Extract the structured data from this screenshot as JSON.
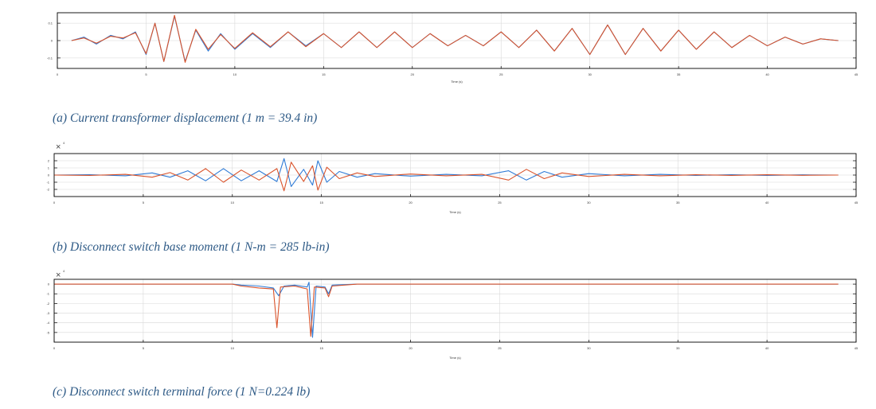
{
  "chart_data": [
    {
      "id": "a",
      "type": "line",
      "caption": "(a) Current transformer displacement (1 m = 39.4 in)",
      "xlabel": "Time (s)",
      "ylabel": "",
      "xlim": [
        0,
        45
      ],
      "ylim": [
        -0.16,
        0.16
      ],
      "x_ticks": [
        "0",
        "5",
        "10",
        "15",
        "20",
        "25",
        "30",
        "35",
        "40",
        "45"
      ],
      "y_ticks": [
        "0.1",
        "0",
        "-0.1"
      ],
      "exponent": "",
      "grid": true,
      "colors": [
        "#2f7bd6",
        "#d9532b"
      ],
      "series": [
        {
          "values": [
            [
              0.8,
              0
            ],
            [
              1.5,
              0.02
            ],
            [
              2.2,
              -0.02
            ],
            [
              3,
              0.03
            ],
            [
              3.7,
              0.01
            ],
            [
              4.4,
              0.05
            ],
            [
              5,
              -0.08
            ],
            [
              5.5,
              0.1
            ],
            [
              6,
              -0.12
            ],
            [
              6.6,
              0.14
            ],
            [
              7.2,
              -0.12
            ],
            [
              7.8,
              0.06
            ],
            [
              8.5,
              -0.06
            ],
            [
              9.2,
              0.04
            ],
            [
              10,
              -0.05
            ],
            [
              11,
              0.04
            ],
            [
              12,
              -0.04
            ],
            [
              13,
              0.05
            ],
            [
              14,
              -0.03
            ],
            [
              15,
              0.04
            ],
            [
              16,
              -0.04
            ],
            [
              17,
              0.05
            ],
            [
              18,
              -0.04
            ],
            [
              19,
              0.05
            ],
            [
              20,
              -0.04
            ],
            [
              21,
              0.04
            ],
            [
              22,
              -0.03
            ],
            [
              23,
              0.03
            ],
            [
              24,
              -0.03
            ],
            [
              25,
              0.05
            ],
            [
              26,
              -0.04
            ],
            [
              27,
              0.06
            ],
            [
              28,
              -0.06
            ],
            [
              29,
              0.07
            ],
            [
              30,
              -0.08
            ],
            [
              31,
              0.09
            ],
            [
              32,
              -0.08
            ],
            [
              33,
              0.07
            ],
            [
              34,
              -0.06
            ],
            [
              35,
              0.06
            ],
            [
              36,
              -0.05
            ],
            [
              37,
              0.05
            ],
            [
              38,
              -0.04
            ],
            [
              39,
              0.03
            ],
            [
              40,
              -0.03
            ],
            [
              41,
              0.02
            ],
            [
              42,
              -0.02
            ],
            [
              43,
              0.01
            ],
            [
              44,
              0
            ]
          ]
        },
        {
          "values": [
            [
              0.8,
              0
            ],
            [
              1.5,
              0.015
            ],
            [
              2.2,
              -0.015
            ],
            [
              3,
              0.025
            ],
            [
              3.7,
              0.015
            ],
            [
              4.4,
              0.045
            ],
            [
              5,
              -0.075
            ],
            [
              5.5,
              0.1
            ],
            [
              6,
              -0.12
            ],
            [
              6.6,
              0.145
            ],
            [
              7.2,
              -0.125
            ],
            [
              7.8,
              0.065
            ],
            [
              8.5,
              -0.05
            ],
            [
              9.2,
              0.035
            ],
            [
              10,
              -0.045
            ],
            [
              11,
              0.045
            ],
            [
              12,
              -0.035
            ],
            [
              13,
              0.05
            ],
            [
              14,
              -0.035
            ],
            [
              15,
              0.04
            ],
            [
              16,
              -0.04
            ],
            [
              17,
              0.05
            ],
            [
              18,
              -0.04
            ],
            [
              19,
              0.05
            ],
            [
              20,
              -0.04
            ],
            [
              21,
              0.04
            ],
            [
              22,
              -0.03
            ],
            [
              23,
              0.03
            ],
            [
              24,
              -0.03
            ],
            [
              25,
              0.05
            ],
            [
              26,
              -0.04
            ],
            [
              27,
              0.06
            ],
            [
              28,
              -0.06
            ],
            [
              29,
              0.07
            ],
            [
              30,
              -0.08
            ],
            [
              31,
              0.09
            ],
            [
              32,
              -0.08
            ],
            [
              33,
              0.07
            ],
            [
              34,
              -0.06
            ],
            [
              35,
              0.06
            ],
            [
              36,
              -0.05
            ],
            [
              37,
              0.05
            ],
            [
              38,
              -0.04
            ],
            [
              39,
              0.03
            ],
            [
              40,
              -0.03
            ],
            [
              41,
              0.02
            ],
            [
              42,
              -0.02
            ],
            [
              43,
              0.01
            ],
            [
              44,
              0
            ]
          ]
        }
      ]
    },
    {
      "id": "b",
      "type": "line",
      "caption": "(b) Disconnect switch base moment (1 N-m = 285 lb-in)",
      "xlabel": "Time (s)",
      "ylabel": "",
      "xlim": [
        0,
        45
      ],
      "ylim": [
        -3,
        3
      ],
      "x_ticks": [
        "0",
        "5",
        "10",
        "15",
        "20",
        "25",
        "30",
        "35",
        "40",
        "45"
      ],
      "y_ticks": [
        "2",
        "1",
        "0",
        "-1",
        "-2"
      ],
      "exponent": "4",
      "grid": true,
      "colors": [
        "#2f7bd6",
        "#d9532b"
      ],
      "series": [
        {
          "values": [
            [
              0,
              0
            ],
            [
              2,
              0.05
            ],
            [
              4,
              -0.1
            ],
            [
              5.5,
              0.3
            ],
            [
              6.5,
              -0.3
            ],
            [
              7.5,
              0.6
            ],
            [
              8.5,
              -0.8
            ],
            [
              9.5,
              0.9
            ],
            [
              10.5,
              -0.8
            ],
            [
              11.5,
              0.6
            ],
            [
              12.5,
              -0.9
            ],
            [
              12.9,
              2.3
            ],
            [
              13.3,
              -1.6
            ],
            [
              14,
              0.8
            ],
            [
              14.5,
              -1.4
            ],
            [
              14.8,
              2
            ],
            [
              15.3,
              -1
            ],
            [
              16,
              0.5
            ],
            [
              17,
              -0.3
            ],
            [
              18,
              0.2
            ],
            [
              20,
              -0.15
            ],
            [
              22,
              0.1
            ],
            [
              24,
              -0.1
            ],
            [
              25.5,
              0.6
            ],
            [
              26.5,
              -0.7
            ],
            [
              27.5,
              0.5
            ],
            [
              28.5,
              -0.3
            ],
            [
              30,
              0.2
            ],
            [
              32,
              -0.1
            ],
            [
              34,
              0.1
            ],
            [
              36,
              -0.05
            ],
            [
              38,
              0.05
            ],
            [
              40,
              -0.05
            ],
            [
              42,
              0.03
            ],
            [
              44,
              0
            ]
          ]
        },
        {
          "values": [
            [
              0,
              0
            ],
            [
              2,
              -0.05
            ],
            [
              4,
              0.1
            ],
            [
              5.5,
              -0.3
            ],
            [
              6.5,
              0.35
            ],
            [
              7.5,
              -0.7
            ],
            [
              8.5,
              0.9
            ],
            [
              9.5,
              -1
            ],
            [
              10.5,
              0.7
            ],
            [
              11.5,
              -0.7
            ],
            [
              12.5,
              0.9
            ],
            [
              12.9,
              -2.2
            ],
            [
              13.3,
              1.8
            ],
            [
              14,
              -0.9
            ],
            [
              14.5,
              1.3
            ],
            [
              14.8,
              -2.1
            ],
            [
              15.3,
              1.1
            ],
            [
              16,
              -0.5
            ],
            [
              17,
              0.3
            ],
            [
              18,
              -0.2
            ],
            [
              20,
              0.15
            ],
            [
              22,
              -0.1
            ],
            [
              24,
              0.1
            ],
            [
              25.5,
              -0.7
            ],
            [
              26.5,
              0.8
            ],
            [
              27.5,
              -0.5
            ],
            [
              28.5,
              0.3
            ],
            [
              30,
              -0.2
            ],
            [
              32,
              0.1
            ],
            [
              34,
              -0.1
            ],
            [
              36,
              0.05
            ],
            [
              38,
              -0.05
            ],
            [
              40,
              0.05
            ],
            [
              42,
              -0.03
            ],
            [
              44,
              0
            ]
          ]
        }
      ]
    },
    {
      "id": "c",
      "type": "line",
      "caption": "(c) Disconnect switch terminal force (1 N=0.224 lb)",
      "xlabel": "Time (s)",
      "ylabel": "",
      "xlim": [
        0,
        45
      ],
      "ylim": [
        -6,
        0.5
      ],
      "x_ticks": [
        "0",
        "5",
        "10",
        "15",
        "20",
        "25",
        "30",
        "35",
        "40",
        "45"
      ],
      "y_ticks": [
        "0",
        "-1",
        "-2",
        "-3",
        "-4",
        "-5"
      ],
      "exponent": "4",
      "grid": true,
      "colors": [
        "#2f7bd6",
        "#d9532b"
      ],
      "series": [
        {
          "values": [
            [
              0,
              0
            ],
            [
              10,
              0
            ],
            [
              10.5,
              -0.1
            ],
            [
              11.5,
              -0.2
            ],
            [
              12.3,
              -0.4
            ],
            [
              12.6,
              -1.2
            ],
            [
              12.9,
              -0.2
            ],
            [
              13.5,
              -0.1
            ],
            [
              14.2,
              -0.3
            ],
            [
              14.3,
              0.2
            ],
            [
              14.5,
              -5.5
            ],
            [
              14.7,
              -0.2
            ],
            [
              15.2,
              -0.3
            ],
            [
              15.4,
              -1
            ],
            [
              15.6,
              -0.1
            ],
            [
              17,
              0
            ],
            [
              20,
              0
            ],
            [
              25,
              0
            ],
            [
              30,
              0
            ],
            [
              35,
              0
            ],
            [
              40,
              0
            ],
            [
              44,
              0
            ]
          ]
        },
        {
          "values": [
            [
              0,
              0
            ],
            [
              10,
              0
            ],
            [
              10.5,
              -0.2
            ],
            [
              11.5,
              -0.4
            ],
            [
              12.3,
              -0.5
            ],
            [
              12.5,
              -4.5
            ],
            [
              12.7,
              -0.3
            ],
            [
              13.5,
              -0.2
            ],
            [
              14.2,
              -0.5
            ],
            [
              14.4,
              -5.4
            ],
            [
              14.6,
              -0.3
            ],
            [
              15.2,
              -0.4
            ],
            [
              15.4,
              -1.3
            ],
            [
              15.6,
              -0.2
            ],
            [
              17,
              0
            ],
            [
              20,
              0
            ],
            [
              25,
              0
            ],
            [
              30,
              0
            ],
            [
              35,
              0
            ],
            [
              40,
              0
            ],
            [
              44,
              0
            ]
          ]
        }
      ]
    }
  ]
}
